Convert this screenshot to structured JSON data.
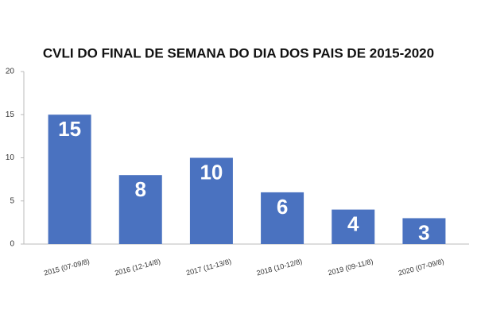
{
  "chart_data": {
    "type": "bar",
    "title": "CVLI DO FINAL DE SEMANA DO DIA DOS PAIS DE 2015-2020",
    "categories": [
      "2015 (07-09/8)",
      "2016 (12-14/8)",
      "2017 (11-13/8)",
      "2018 (10-12/8)",
      "2019 (09-11/8)",
      "2020 (07-09/8)"
    ],
    "values": [
      15,
      8,
      10,
      6,
      4,
      3
    ],
    "color": "#4a72c0",
    "ylim": [
      0,
      20
    ],
    "yticks": [
      0,
      5,
      10,
      15,
      20
    ],
    "grid": false
  }
}
